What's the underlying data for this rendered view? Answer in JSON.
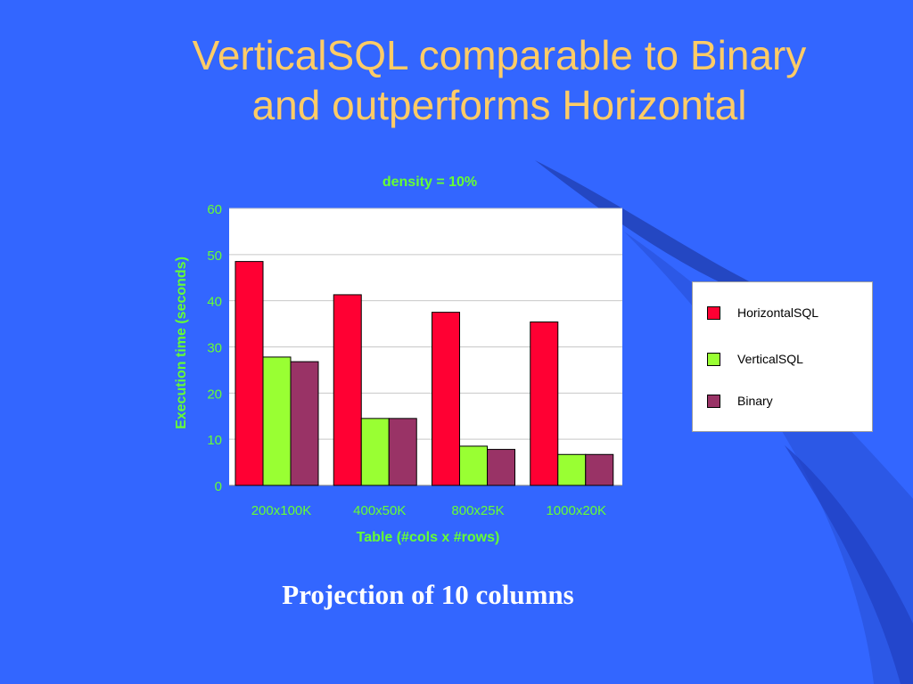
{
  "slide": {
    "title_line1": "VerticalSQL comparable to Binary",
    "title_line2": "and outperforms Horizontal",
    "caption": "Projection of 10 columns"
  },
  "colors": {
    "background": "#3366ff",
    "title": "#ffcc66",
    "chart_text": "#66ff33",
    "horizontal": "#ff0033",
    "vertical": "#99ff33",
    "binary": "#993366"
  },
  "chart_data": {
    "type": "bar",
    "title": "density = 10%",
    "xlabel": "Table (#cols x #rows)",
    "ylabel": "Execution time (seconds)",
    "ylim": [
      0,
      60
    ],
    "yticks": [
      0,
      10,
      20,
      30,
      40,
      50,
      60
    ],
    "grid": true,
    "legend_position": "right",
    "categories": [
      "200x100K",
      "400x50K",
      "800x25K",
      "1000x20K"
    ],
    "series": [
      {
        "name": "HorizontalSQL",
        "color": "#ff0033",
        "values": [
          48.5,
          41.3,
          37.5,
          35.4
        ]
      },
      {
        "name": "VerticalSQL",
        "color": "#99ff33",
        "values": [
          27.8,
          14.5,
          8.5,
          6.7
        ]
      },
      {
        "name": "Binary",
        "color": "#993366",
        "values": [
          26.8,
          14.5,
          7.8,
          6.7
        ]
      }
    ]
  }
}
